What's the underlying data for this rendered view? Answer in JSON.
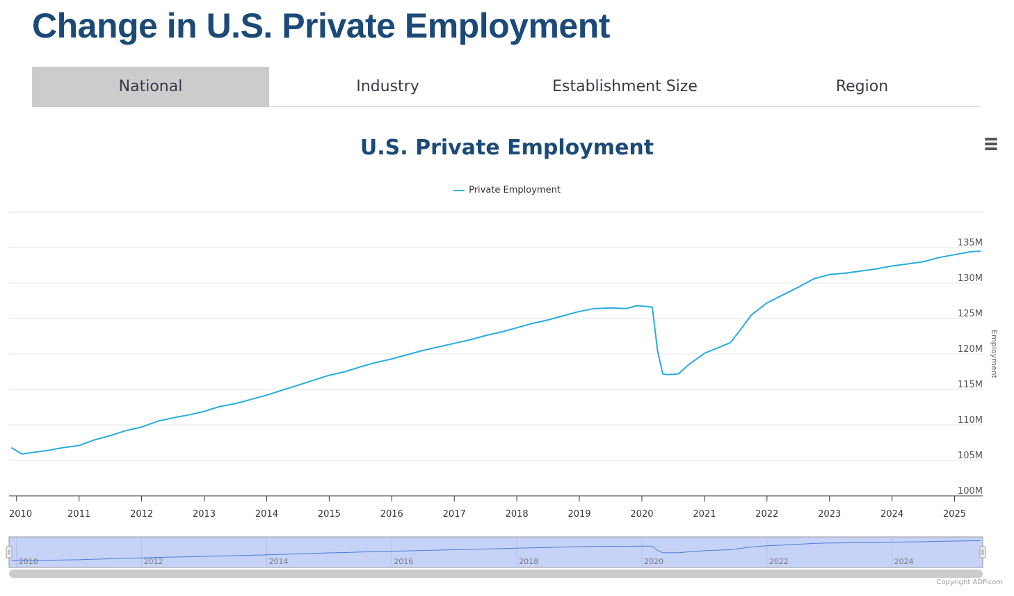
{
  "page": {
    "title": "Change in U.S. Private Employment"
  },
  "tabs": [
    {
      "label": "National",
      "active": true
    },
    {
      "label": "Industry",
      "active": false
    },
    {
      "label": "Establishment Size",
      "active": false
    },
    {
      "label": "Region",
      "active": false
    }
  ],
  "menu": {
    "icon": "hamburger-menu-icon"
  },
  "copyright": "Copyright ADP.com",
  "colors": {
    "title": "#1c4a78",
    "series": "#29abe2",
    "navigator_fill": "#c7d2f7",
    "active_tab": "#cccccc"
  },
  "chart_data": {
    "type": "line",
    "title": "U.S. Private Employment",
    "xlabel": "",
    "ylabel": "Employment",
    "legend": [
      "Private Employment"
    ],
    "legend_position": "top-center",
    "grid": true,
    "ylim": [
      100000000,
      140000000
    ],
    "y_ticks": [
      "100M",
      "105M",
      "110M",
      "115M",
      "120M",
      "125M",
      "130M",
      "135M"
    ],
    "x_ticks": [
      "2010",
      "2011",
      "2012",
      "2013",
      "2014",
      "2015",
      "2016",
      "2017",
      "2018",
      "2019",
      "2020",
      "2021",
      "2022",
      "2023",
      "2024",
      "2025"
    ],
    "navigator_ticks": [
      "2010",
      "2012",
      "2014",
      "2016",
      "2018",
      "2020",
      "2022",
      "2024"
    ],
    "series": [
      {
        "name": "Private Employment",
        "points": [
          [
            "2009-12",
            106.8
          ],
          [
            "2010-02",
            105.9
          ],
          [
            "2010-04",
            106.1
          ],
          [
            "2010-07",
            106.4
          ],
          [
            "2010-10",
            106.8
          ],
          [
            "2011-01",
            107.1
          ],
          [
            "2011-04",
            107.9
          ],
          [
            "2011-07",
            108.5
          ],
          [
            "2011-10",
            109.2
          ],
          [
            "2012-01",
            109.7
          ],
          [
            "2012-04",
            110.5
          ],
          [
            "2012-07",
            111.0
          ],
          [
            "2012-10",
            111.4
          ],
          [
            "2013-01",
            111.9
          ],
          [
            "2013-04",
            112.6
          ],
          [
            "2013-07",
            113.0
          ],
          [
            "2013-10",
            113.6
          ],
          [
            "2014-01",
            114.2
          ],
          [
            "2014-04",
            114.9
          ],
          [
            "2014-07",
            115.6
          ],
          [
            "2014-10",
            116.3
          ],
          [
            "2015-01",
            117.0
          ],
          [
            "2015-04",
            117.5
          ],
          [
            "2015-07",
            118.2
          ],
          [
            "2015-10",
            118.8
          ],
          [
            "2016-01",
            119.3
          ],
          [
            "2016-04",
            119.9
          ],
          [
            "2016-07",
            120.5
          ],
          [
            "2016-10",
            121.0
          ],
          [
            "2017-01",
            121.5
          ],
          [
            "2017-04",
            122.0
          ],
          [
            "2017-07",
            122.6
          ],
          [
            "2017-10",
            123.1
          ],
          [
            "2018-01",
            123.7
          ],
          [
            "2018-04",
            124.3
          ],
          [
            "2018-07",
            124.8
          ],
          [
            "2018-10",
            125.4
          ],
          [
            "2019-01",
            126.0
          ],
          [
            "2019-04",
            126.4
          ],
          [
            "2019-07",
            126.5
          ],
          [
            "2019-10",
            126.4
          ],
          [
            "2019-12",
            126.8
          ],
          [
            "2020-02",
            126.7
          ],
          [
            "2020-03",
            126.6
          ],
          [
            "2020-04",
            120.5
          ],
          [
            "2020-05",
            117.2
          ],
          [
            "2020-06",
            117.1
          ],
          [
            "2020-08",
            117.2
          ],
          [
            "2020-10",
            118.5
          ],
          [
            "2021-01",
            120.1
          ],
          [
            "2021-04",
            121.0
          ],
          [
            "2021-06",
            121.6
          ],
          [
            "2021-08",
            123.5
          ],
          [
            "2021-10",
            125.5
          ],
          [
            "2022-01",
            127.2
          ],
          [
            "2022-04",
            128.3
          ],
          [
            "2022-07",
            129.4
          ],
          [
            "2022-10",
            130.6
          ],
          [
            "2023-01",
            131.2
          ],
          [
            "2023-04",
            131.4
          ],
          [
            "2023-07",
            131.7
          ],
          [
            "2023-10",
            132.0
          ],
          [
            "2024-01",
            132.4
          ],
          [
            "2024-04",
            132.7
          ],
          [
            "2024-07",
            133.0
          ],
          [
            "2024-10",
            133.6
          ],
          [
            "2025-01",
            134.0
          ],
          [
            "2025-04",
            134.4
          ],
          [
            "2025-06",
            134.5
          ]
        ],
        "unit": "millions"
      }
    ]
  }
}
